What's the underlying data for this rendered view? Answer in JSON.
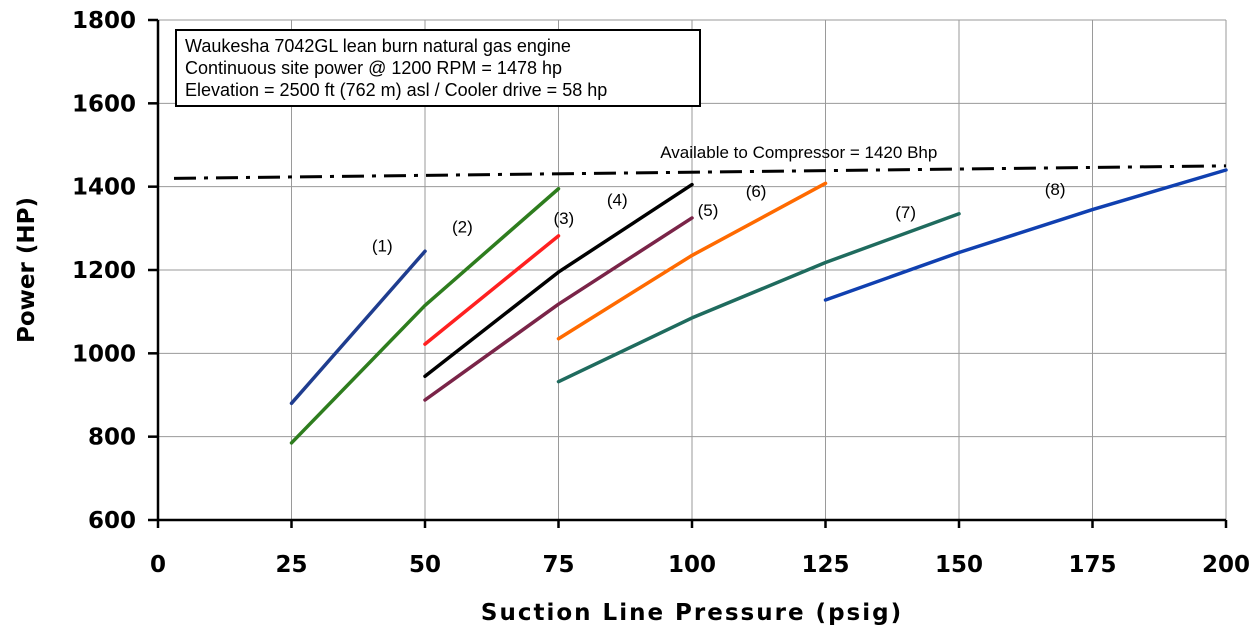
{
  "chart_data": {
    "type": "line",
    "title": "",
    "xlabel": "Suction Line Pressure (psig)",
    "ylabel": "Power (HP)",
    "xlim": [
      0,
      200
    ],
    "ylim": [
      600,
      1800
    ],
    "xticks": [
      0,
      25,
      50,
      75,
      100,
      125,
      150,
      175,
      200
    ],
    "yticks": [
      600,
      800,
      1000,
      1200,
      1400,
      1600,
      1800
    ],
    "grid": true,
    "info_box": [
      "Waukesha 7042GL lean burn natural gas engine",
      "Continuous site power @ 1200 RPM = 1478 hp",
      "Elevation = 2500 ft (762 m) asl / Cooler drive = 58 hp"
    ],
    "reference_line": {
      "label": "Available to Compressor = 1420 Bhp",
      "value": 1420
    },
    "series": [
      {
        "name": "(1)",
        "color": "#1f3d8f",
        "x": [
          25,
          50
        ],
        "y": [
          880,
          1245
        ]
      },
      {
        "name": "(2)",
        "color": "#2e7d1e",
        "x": [
          25,
          50,
          75
        ],
        "y": [
          785,
          1115,
          1395
        ]
      },
      {
        "name": "(3)",
        "color": "#ff2020",
        "x": [
          50,
          75
        ],
        "y": [
          1022,
          1282
        ]
      },
      {
        "name": "(4)",
        "color": "#000000",
        "x": [
          50,
          75,
          100
        ],
        "y": [
          945,
          1195,
          1405
        ]
      },
      {
        "name": "(5)",
        "color": "#7a2448",
        "x": [
          50,
          75,
          100
        ],
        "y": [
          888,
          1118,
          1325
        ]
      },
      {
        "name": "(6)",
        "color": "#ff6a00",
        "x": [
          75,
          100,
          125
        ],
        "y": [
          1035,
          1235,
          1408
        ]
      },
      {
        "name": "(7)",
        "color": "#1f6b5e",
        "x": [
          75,
          100,
          125,
          150
        ],
        "y": [
          932,
          1085,
          1218,
          1335
        ]
      },
      {
        "name": "(8)",
        "color": "#1040b0",
        "x": [
          125,
          150,
          175,
          200
        ],
        "y": [
          1128,
          1242,
          1345,
          1440
        ]
      }
    ]
  }
}
